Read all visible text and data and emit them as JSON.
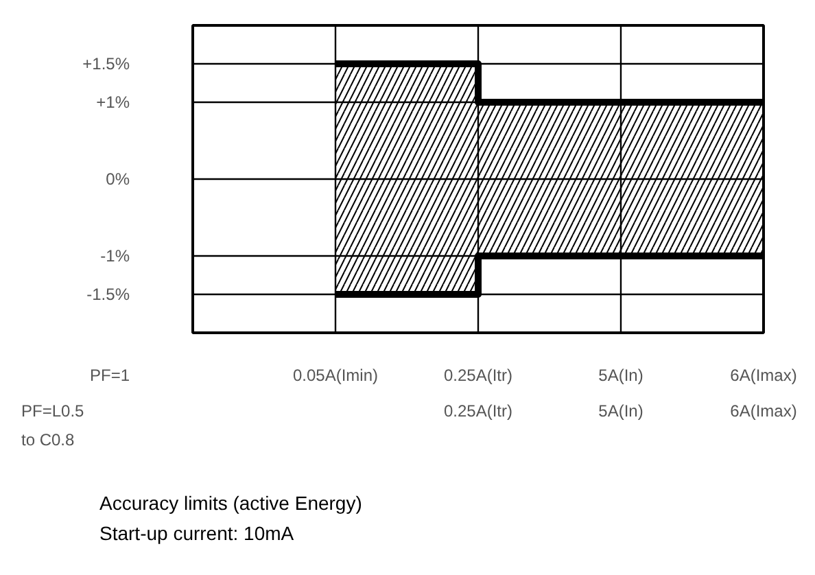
{
  "chart_data": {
    "type": "step",
    "categories": [
      null,
      "0.05A(Imin)",
      "0.25A(Itr)",
      "5A(In)",
      "6A(Imax)"
    ],
    "series": [
      {
        "color": "#000000",
        "values": [
          null,
          1.5,
          1,
          1,
          1
        ],
        "lower": [
          null,
          -1.5,
          -1,
          -1,
          -1
        ],
        "upper": [
          null,
          1.5,
          1,
          1,
          1
        ]
      },
      {
        "color": "#000000",
        "values": [
          null,
          -1.5,
          -1,
          -1,
          -1
        ]
      }
    ],
    "ylim": [
      -2,
      2
    ],
    "yticks": [
      {
        "value": 1.5,
        "label": "+1.5%"
      },
      {
        "value": 1,
        "label": "+1%"
      },
      {
        "value": 0,
        "label": "0%"
      },
      {
        "value": -1,
        "label": "-1%"
      },
      {
        "value": -1.5,
        "label": "-1.5%"
      }
    ],
    "grid": true,
    "annotations": [
      "PF=1",
      "PF=L0.5 to C0.8",
      "0.25A(Itr)",
      "5A(In)",
      "6A(Imax)",
      "Accuracy limits (active Energy)",
      "Start-up current: 10mA"
    ]
  }
}
